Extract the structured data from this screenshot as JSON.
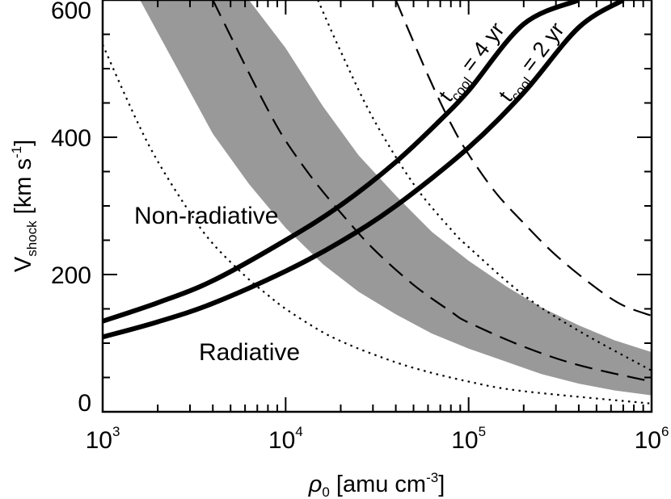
{
  "chart_data": {
    "type": "line",
    "xscale": "log",
    "xlim": [
      1000,
      1000000
    ],
    "ylim": [
      0,
      600
    ],
    "x_ticks": [
      {
        "value": 1000,
        "base": "10",
        "exp": "3"
      },
      {
        "value": 10000,
        "base": "10",
        "exp": "4"
      },
      {
        "value": 100000,
        "base": "10",
        "exp": "5"
      },
      {
        "value": 1000000,
        "base": "10",
        "exp": "6"
      }
    ],
    "y_ticks": [
      {
        "value": 0,
        "label": "0"
      },
      {
        "value": 200,
        "label": "200"
      },
      {
        "value": 400,
        "label": "400"
      },
      {
        "value": 600,
        "label": "600"
      }
    ],
    "xlabel": {
      "sym": "ρ",
      "sub": "0",
      "text": " [amu cm",
      "sup": "-3",
      "end": "]"
    },
    "ylabel": {
      "text": "V",
      "sub": "shock",
      "units": " [km s",
      "sup": "-1",
      "end": "]"
    },
    "region_labels": {
      "upper": "Non-radiative",
      "lower": "Radiative"
    },
    "band": {
      "name": "shaded region",
      "color": "#999999",
      "upper": {
        "x": [
          1600,
          2500,
          4000,
          6300,
          10000,
          16000,
          25000,
          40000,
          63000,
          100000,
          160000,
          250000,
          400000,
          630000,
          1000000
        ],
        "y": [
          600,
          600,
          600,
          600,
          530,
          445,
          374,
          315,
          262,
          220,
          183,
          152,
          126,
          104,
          87
        ]
      },
      "lower": {
        "x": [
          1600,
          2500,
          4000,
          6300,
          10000,
          16000,
          25000,
          40000,
          63000,
          100000,
          160000,
          250000,
          400000,
          630000,
          1000000
        ],
        "y": [
          600,
          505,
          405,
          332,
          268,
          215,
          175,
          142,
          114,
          92,
          73,
          55,
          41,
          31,
          24
        ]
      }
    },
    "series": [
      {
        "name": "t_cool = 4 yr",
        "label_main": "t",
        "label_sub": "cool",
        "label_rest": " = 4 yr",
        "style": "solid-thick",
        "x": [
          1000,
          2000,
          4000,
          10000,
          20000,
          40000,
          70000,
          100000,
          200000,
          400000
        ],
        "y": [
          132,
          159,
          191,
          250,
          301,
          364,
          425,
          468,
          565,
          600
        ]
      },
      {
        "name": "t_cool = 2 yr",
        "label_main": "t",
        "label_sub": "cool",
        "label_rest": " = 2 yr",
        "style": "solid-thick",
        "x": [
          1000,
          2000,
          4000,
          10000,
          20000,
          40000,
          100000,
          200000,
          400000,
          700000
        ],
        "y": [
          109,
          131,
          158,
          205,
          248,
          300,
          385,
          465,
          560,
          600
        ]
      },
      {
        "name": "dashed inner",
        "style": "dashed",
        "x": [
          4000,
          6000,
          8000,
          10000,
          14000,
          20000,
          30000,
          50000,
          80000,
          100000,
          200000,
          400000,
          1000000
        ],
        "y": [
          600,
          505,
          440,
          395,
          340,
          290,
          238,
          185,
          146,
          130,
          95,
          68,
          44
        ]
      },
      {
        "name": "dashed outer",
        "style": "dashed",
        "x": [
          40000,
          60000,
          80000,
          100000,
          140000,
          200000,
          300000,
          500000,
          700000,
          1000000
        ],
        "y": [
          600,
          490,
          420,
          375,
          320,
          275,
          228,
          180,
          155,
          140
        ]
      },
      {
        "name": "dotted inner",
        "style": "dotted",
        "x": [
          1000,
          1500,
          2000,
          3000,
          4000,
          6000,
          8000,
          10000,
          15000,
          20000,
          30000,
          50000,
          100000,
          200000,
          1000000
        ],
        "y": [
          535,
          430,
          365,
          290,
          245,
          198,
          170,
          150,
          120,
          103,
          84,
          64,
          44,
          30,
          12
        ]
      },
      {
        "name": "dotted outer",
        "style": "dotted",
        "x": [
          15000,
          20000,
          30000,
          50000,
          80000,
          100000,
          200000,
          400000,
          1000000
        ],
        "y": [
          600,
          525,
          428,
          332,
          266,
          240,
          170,
          118,
          60
        ]
      }
    ]
  }
}
